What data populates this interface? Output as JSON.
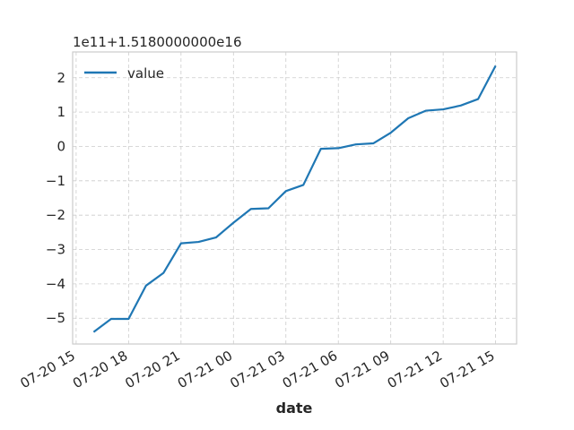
{
  "chart_data": {
    "type": "line",
    "xlabel": "date",
    "ylabel": "",
    "offset_text": "1e11+1.5180000000e16",
    "x": [
      "07-20 16",
      "07-20 17",
      "07-20 18",
      "07-20 19",
      "07-20 20",
      "07-20 21",
      "07-20 22",
      "07-20 23",
      "07-21 00",
      "07-21 01",
      "07-21 02",
      "07-21 03",
      "07-21 04",
      "07-21 05",
      "07-21 06",
      "07-21 07",
      "07-21 08",
      "07-21 09",
      "07-21 10",
      "07-21 11",
      "07-21 12",
      "07-21 13",
      "07-21 14",
      "07-21 15"
    ],
    "x_hours": [
      1,
      2,
      3,
      4,
      5,
      6,
      7,
      8,
      9,
      10,
      11,
      12,
      13,
      14,
      15,
      16,
      17,
      18,
      19,
      20,
      21,
      22,
      23,
      24
    ],
    "x_ticks": [
      "07-20 15",
      "07-20 18",
      "07-20 21",
      "07-21 00",
      "07-21 03",
      "07-21 06",
      "07-21 09",
      "07-21 12",
      "07-21 15"
    ],
    "x_tick_hours": [
      0,
      3,
      6,
      9,
      12,
      15,
      18,
      21,
      24
    ],
    "xlim_hours": [
      -0.2,
      25.2
    ],
    "y_ticks": [
      "−5",
      "−4",
      "−3",
      "−2",
      "−1",
      "0",
      "1",
      "2"
    ],
    "y_tick_values": [
      -5,
      -4,
      -3,
      -2,
      -1,
      0,
      1,
      2
    ],
    "ylim": [
      -5.75,
      2.75
    ],
    "grid": true,
    "legend_position": "top-left",
    "series": [
      {
        "name": "value",
        "color": "#1f77b4",
        "values": [
          -5.4,
          -5.02,
          -5.02,
          -4.05,
          -3.68,
          -2.82,
          -2.78,
          -2.65,
          -2.22,
          -1.82,
          -1.8,
          -1.3,
          -1.12,
          -0.07,
          -0.05,
          0.06,
          0.09,
          0.4,
          0.82,
          1.04,
          1.08,
          1.19,
          1.38,
          2.35
        ]
      }
    ]
  }
}
